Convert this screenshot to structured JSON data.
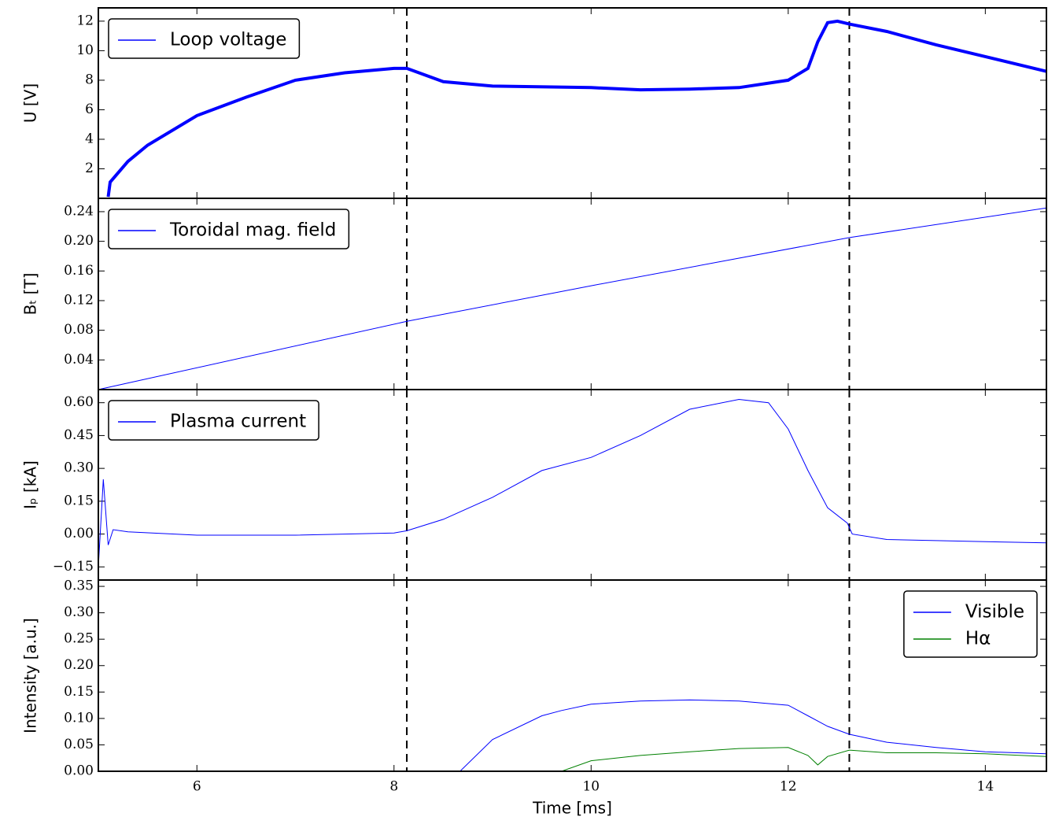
{
  "chart_data": [
    {
      "type": "line",
      "ylabel": "U [V]",
      "legend": "upper left",
      "xlim": [
        5,
        14.62
      ],
      "xticks": [
        6,
        8,
        10,
        12,
        14
      ],
      "vlines": [
        8.13,
        12.62
      ],
      "ylim": [
        0,
        12.9
      ],
      "yticks": [
        2,
        4,
        6,
        8,
        10,
        12
      ],
      "x": [
        5.1,
        5.12,
        5.3,
        5.5,
        6,
        6.5,
        7,
        7.5,
        8,
        8.13,
        8.5,
        9,
        10,
        10.5,
        11,
        11.5,
        12,
        12.2,
        12.3,
        12.4,
        12.5,
        12.62,
        13,
        13.5,
        14,
        14.62
      ],
      "series": [
        {
          "name": "Loop voltage",
          "color": "#0000ff",
          "linewidth": 4,
          "values": [
            0.1,
            1.1,
            2.5,
            3.6,
            5.6,
            6.85,
            8.0,
            8.5,
            8.8,
            8.8,
            7.9,
            7.6,
            7.5,
            7.35,
            7.4,
            7.5,
            8.0,
            8.8,
            10.6,
            11.9,
            12.0,
            11.8,
            11.3,
            10.4,
            9.6,
            8.6
          ]
        }
      ]
    },
    {
      "type": "line",
      "ylabel": "Bₜ [T]",
      "legend": "upper left",
      "xlim": [
        5,
        14.62
      ],
      "xticks": [
        6,
        8,
        10,
        12,
        14
      ],
      "vlines": [
        8.13,
        12.62
      ],
      "ylim": [
        0,
        0.258
      ],
      "yticks": [
        {
          "value": 0.04,
          "label": "0.04"
        },
        {
          "value": 0.08,
          "label": "0.08"
        },
        {
          "value": 0.12,
          "label": "0.12"
        },
        {
          "value": 0.16,
          "label": "0.16"
        },
        {
          "value": 0.2,
          "label": "0.20"
        },
        {
          "value": 0.24,
          "label": "0.24"
        }
      ],
      "x": [
        5,
        8.13,
        10,
        12.62,
        14.62
      ],
      "series": [
        {
          "name": "Toroidal mag. field",
          "color": "#0000ff",
          "linewidth": 1,
          "values": [
            0,
            0.092,
            0.14,
            0.205,
            0.245
          ]
        }
      ]
    },
    {
      "type": "line",
      "ylabel": "Iₚ [kA]",
      "legend": "upper left",
      "xlim": [
        5,
        14.62
      ],
      "xticks": [
        6,
        8,
        10,
        12,
        14
      ],
      "vlines": [
        8.13,
        12.62
      ],
      "ylim": [
        -0.21,
        0.66
      ],
      "yticks": [
        {
          "value": -0.15,
          "label": "−0.15"
        },
        {
          "value": 0,
          "label": "0.00"
        },
        {
          "value": 0.15,
          "label": "0.15"
        },
        {
          "value": 0.3,
          "label": "0.30"
        },
        {
          "value": 0.45,
          "label": "0.45"
        },
        {
          "value": 0.6,
          "label": "0.60"
        }
      ],
      "x": [
        5.0,
        5.05,
        5.1,
        5.15,
        5.3,
        6,
        7,
        8,
        8.13,
        8.5,
        9,
        9.5,
        10,
        10.5,
        11,
        11.5,
        11.8,
        12.0,
        12.2,
        12.4,
        12.6,
        12.65,
        13,
        14,
        14.62
      ],
      "series": [
        {
          "name": "Plasma current",
          "color": "#0000ff",
          "linewidth": 1,
          "values": [
            -0.15,
            0.25,
            -0.05,
            0.02,
            0.01,
            -0.005,
            -0.005,
            0.005,
            0.015,
            0.067,
            0.168,
            0.29,
            0.35,
            0.45,
            0.57,
            0.615,
            0.6,
            0.48,
            0.29,
            0.12,
            0.05,
            0.0,
            -0.025,
            -0.035,
            -0.04
          ]
        }
      ]
    },
    {
      "type": "line",
      "ylabel": "Intensity [a.u.]",
      "xlabel": "Time [ms]",
      "legend": "upper right",
      "xlim": [
        5,
        14.62
      ],
      "xticks": [
        6,
        8,
        10,
        12,
        14
      ],
      "vlines": [
        8.13,
        12.62
      ],
      "ylim": [
        0,
        0.362
      ],
      "yticks": [
        {
          "value": 0,
          "label": "0.00"
        },
        {
          "value": 0.05,
          "label": "0.05"
        },
        {
          "value": 0.1,
          "label": "0.10"
        },
        {
          "value": 0.15,
          "label": "0.15"
        },
        {
          "value": 0.2,
          "label": "0.20"
        },
        {
          "value": 0.25,
          "label": "0.25"
        },
        {
          "value": 0.3,
          "label": "0.30"
        },
        {
          "value": 0.35,
          "label": "0.35"
        }
      ],
      "x": [
        8.67,
        9,
        9.5,
        9.7,
        10,
        10.5,
        11,
        11.5,
        12,
        12.2,
        12.3,
        12.4,
        12.62,
        13,
        13.5,
        14,
        14.62
      ],
      "series": [
        {
          "name": "Visible",
          "color": "#0000ff",
          "linewidth": 1,
          "values": [
            0,
            0.06,
            0.105,
            0.115,
            0.127,
            0.133,
            0.135,
            0.133,
            0.125,
            0.105,
            0.095,
            0.085,
            0.07,
            0.055,
            0.045,
            0.037,
            0.033
          ]
        },
        {
          "name": "Hα",
          "color": "#008000",
          "linewidth": 1,
          "values": [
            null,
            null,
            null,
            0,
            0.02,
            0.03,
            0.037,
            0.043,
            0.045,
            0.03,
            0.012,
            0.028,
            0.04,
            0.035,
            0.035,
            0.033,
            0.028
          ]
        }
      ]
    }
  ]
}
